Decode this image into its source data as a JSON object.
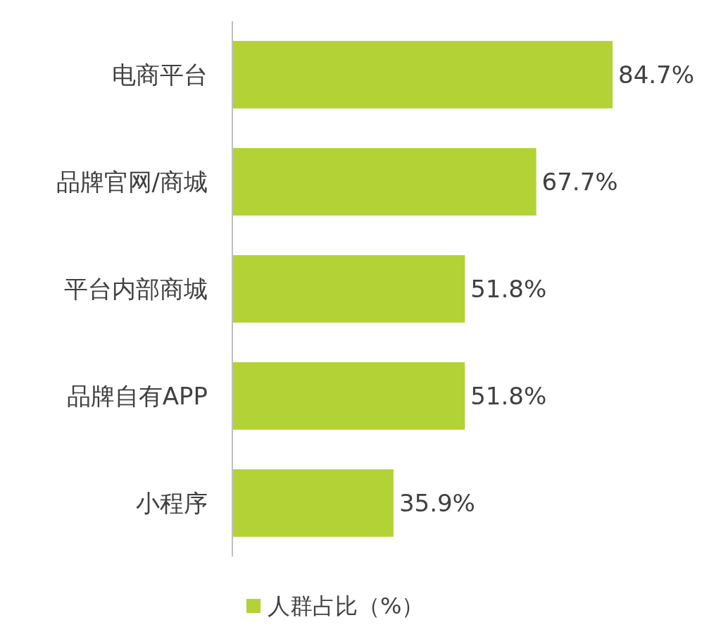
{
  "chart_data": {
    "type": "bar",
    "orientation": "horizontal",
    "categories": [
      "电商平台",
      "品牌官网/商城",
      "平台内部商城",
      "品牌自有APP",
      "小程序"
    ],
    "series": [
      {
        "name": "人群占比（%）",
        "color": "#b3d236",
        "values": [
          84.7,
          67.7,
          51.8,
          51.8,
          35.9
        ],
        "value_labels": [
          "84.7%",
          "67.7%",
          "51.8%",
          "51.8%",
          "35.9%"
        ]
      }
    ],
    "legend": "bottom"
  }
}
